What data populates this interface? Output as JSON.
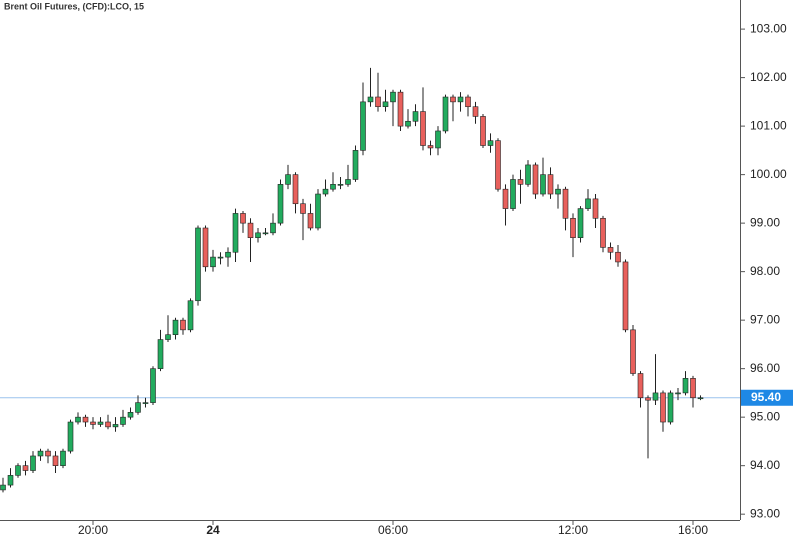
{
  "chart_data": {
    "type": "candlestick",
    "title": "Brent Oil Futures, (CFD):LCO, 15",
    "categories": [
      null,
      null,
      null,
      null,
      null,
      null,
      null,
      null,
      null,
      null,
      null,
      null,
      "20:00",
      null,
      null,
      null,
      null,
      null,
      null,
      null,
      null,
      null,
      null,
      null,
      null,
      null,
      null,
      null,
      "24",
      null,
      null,
      null,
      null,
      null,
      null,
      null,
      null,
      null,
      null,
      null,
      null,
      null,
      null,
      null,
      null,
      null,
      null,
      null,
      null,
      null,
      null,
      null,
      "06:00",
      null,
      null,
      null,
      null,
      null,
      null,
      null,
      null,
      null,
      null,
      null,
      null,
      null,
      null,
      null,
      null,
      null,
      null,
      null,
      null,
      null,
      null,
      null,
      "12:00",
      null,
      null,
      null,
      null,
      null,
      null,
      null,
      null,
      null,
      null,
      null,
      null,
      null,
      null,
      null,
      "16:00",
      null
    ],
    "open": [
      93.5,
      93.6,
      93.8,
      94.0,
      93.9,
      94.2,
      94.3,
      94.2,
      94.0,
      94.3,
      94.9,
      95.0,
      94.9,
      94.85,
      94.9,
      94.8,
      94.85,
      95.0,
      95.1,
      95.3,
      95.3,
      96.0,
      96.6,
      96.7,
      97.0,
      96.8,
      97.4,
      98.9,
      98.1,
      98.3,
      98.3,
      98.4,
      99.2,
      99.0,
      98.7,
      98.8,
      98.8,
      99.0,
      99.8,
      100.0,
      99.4,
      99.2,
      98.9,
      99.6,
      99.7,
      99.8,
      99.8,
      99.9,
      100.5,
      101.5,
      101.6,
      101.4,
      101.5,
      101.7,
      101.0,
      101.1,
      101.3,
      100.6,
      100.55,
      100.9,
      101.6,
      101.5,
      101.6,
      101.4,
      101.2,
      100.6,
      100.7,
      99.7,
      99.3,
      99.9,
      99.8,
      100.2,
      99.6,
      100.0,
      99.6,
      99.7,
      99.1,
      98.7,
      99.3,
      99.5,
      99.1,
      98.5,
      98.4,
      98.2,
      96.8,
      95.9,
      95.4,
      95.35,
      95.5,
      94.9,
      95.5,
      95.5,
      95.8,
      95.4
    ],
    "high": [
      93.75,
      93.95,
      94.05,
      94.1,
      94.3,
      94.35,
      94.35,
      94.3,
      94.35,
      94.95,
      95.1,
      95.05,
      95.0,
      95.0,
      95.05,
      95.0,
      95.15,
      95.2,
      95.45,
      95.4,
      96.05,
      96.8,
      97.1,
      97.05,
      97.05,
      97.45,
      98.95,
      98.95,
      98.45,
      98.4,
      98.5,
      99.3,
      99.25,
      99.1,
      98.9,
      98.9,
      99.2,
      99.9,
      100.2,
      100.05,
      99.5,
      99.4,
      99.7,
      99.9,
      100.05,
      99.95,
      100.2,
      100.6,
      101.9,
      102.2,
      102.1,
      101.75,
      101.75,
      101.75,
      101.35,
      101.45,
      101.8,
      100.7,
      101.0,
      101.65,
      101.65,
      101.7,
      101.65,
      101.5,
      101.25,
      100.85,
      100.75,
      99.8,
      100.0,
      100.1,
      100.3,
      100.25,
      100.35,
      100.15,
      99.8,
      99.75,
      99.2,
      99.35,
      99.7,
      99.6,
      99.15,
      98.6,
      98.55,
      98.25,
      96.9,
      95.95,
      95.45,
      96.3,
      95.55,
      95.55,
      95.6,
      95.95,
      95.85,
      95.45
    ],
    "low": [
      93.45,
      93.55,
      93.75,
      93.8,
      93.85,
      94.1,
      94.05,
      93.85,
      93.95,
      94.25,
      94.85,
      94.8,
      94.75,
      94.8,
      94.75,
      94.7,
      94.8,
      94.95,
      95.05,
      95.2,
      95.25,
      95.95,
      96.55,
      96.6,
      96.7,
      96.75,
      97.3,
      98.0,
      98.0,
      98.15,
      98.1,
      98.2,
      98.8,
      98.2,
      98.6,
      98.75,
      98.75,
      98.95,
      99.7,
      99.2,
      98.65,
      98.85,
      98.85,
      99.55,
      99.65,
      99.7,
      99.75,
      99.85,
      100.4,
      101.4,
      101.3,
      101.3,
      101.0,
      100.9,
      100.95,
      101.0,
      100.5,
      100.4,
      100.4,
      100.85,
      101.1,
      101.3,
      101.2,
      101.05,
      100.55,
      100.45,
      99.65,
      98.95,
      99.25,
      99.4,
      99.75,
      99.5,
      99.55,
      99.5,
      99.3,
      98.85,
      98.3,
      98.6,
      99.25,
      98.9,
      98.4,
      98.25,
      98.1,
      96.75,
      95.85,
      95.2,
      94.15,
      95.25,
      94.7,
      94.85,
      95.35,
      95.45,
      95.2,
      95.35
    ],
    "close": [
      93.6,
      93.8,
      94.0,
      93.9,
      94.2,
      94.3,
      94.2,
      94.0,
      94.3,
      94.9,
      95.0,
      94.9,
      94.85,
      94.9,
      94.8,
      94.85,
      95.0,
      95.1,
      95.3,
      95.3,
      96.0,
      96.6,
      96.7,
      97.0,
      96.8,
      97.4,
      98.9,
      98.1,
      98.3,
      98.3,
      98.4,
      99.2,
      99.0,
      98.7,
      98.8,
      98.8,
      99.0,
      99.8,
      100.0,
      99.4,
      99.2,
      98.9,
      99.6,
      99.7,
      99.8,
      99.8,
      99.9,
      100.5,
      101.5,
      101.6,
      101.4,
      101.5,
      101.7,
      101.0,
      101.1,
      101.3,
      100.6,
      100.55,
      100.9,
      101.6,
      101.5,
      101.6,
      101.4,
      101.2,
      100.6,
      100.7,
      99.7,
      99.3,
      99.9,
      99.8,
      100.2,
      99.6,
      100.0,
      99.6,
      99.7,
      99.1,
      98.7,
      99.3,
      99.5,
      99.1,
      98.5,
      98.4,
      98.2,
      96.8,
      95.9,
      95.4,
      95.35,
      95.5,
      94.9,
      95.5,
      95.5,
      95.8,
      95.4,
      95.4
    ],
    "up_color": "#22ab5e",
    "down_color": "#e8605c",
    "ylim": [
      92.88,
      103.6
    ],
    "yticks": [
      {
        "value": 93,
        "label": "93.00"
      },
      {
        "value": 94,
        "label": "94.00"
      },
      {
        "value": 95,
        "label": "95.00"
      },
      {
        "value": 96,
        "label": "96.00"
      },
      {
        "value": 97,
        "label": "97.00"
      },
      {
        "value": 98,
        "label": "98.00"
      },
      {
        "value": 99,
        "label": "99.00"
      },
      {
        "value": 100,
        "label": "100.00"
      },
      {
        "value": 101,
        "label": "101.00"
      },
      {
        "value": 102,
        "label": "102.00"
      },
      {
        "value": 103,
        "label": "103.00"
      }
    ],
    "last_price": {
      "value": 95.4,
      "label": "95.40"
    },
    "last_price_color": "#1e88e5"
  }
}
